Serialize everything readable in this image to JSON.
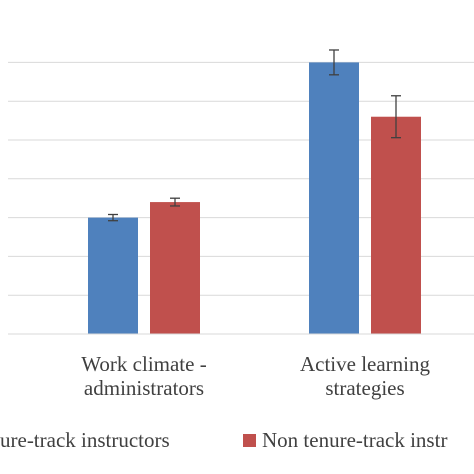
{
  "chart_data": {
    "type": "bar",
    "categories": [
      [
        "Work climate -",
        "administrators"
      ],
      [
        "Active learning",
        "strategies"
      ]
    ],
    "series": [
      {
        "name": "Tenure-track instructors",
        "values": [
          1.5,
          3.5
        ],
        "errors": [
          0.04,
          0.16
        ],
        "color": "#4f81bd"
      },
      {
        "name": "Non tenure-track instructors",
        "values": [
          1.7,
          2.8
        ],
        "errors": [
          0.05,
          0.27
        ],
        "color": "#c0504d"
      }
    ],
    "legend_text": [
      "ure-track instructors",
      "Non tenure-track instr"
    ],
    "gridlines": true,
    "grid_color": "#d9d9d9",
    "axis_color": "#d9d9d9",
    "legend_position": "bottom"
  }
}
